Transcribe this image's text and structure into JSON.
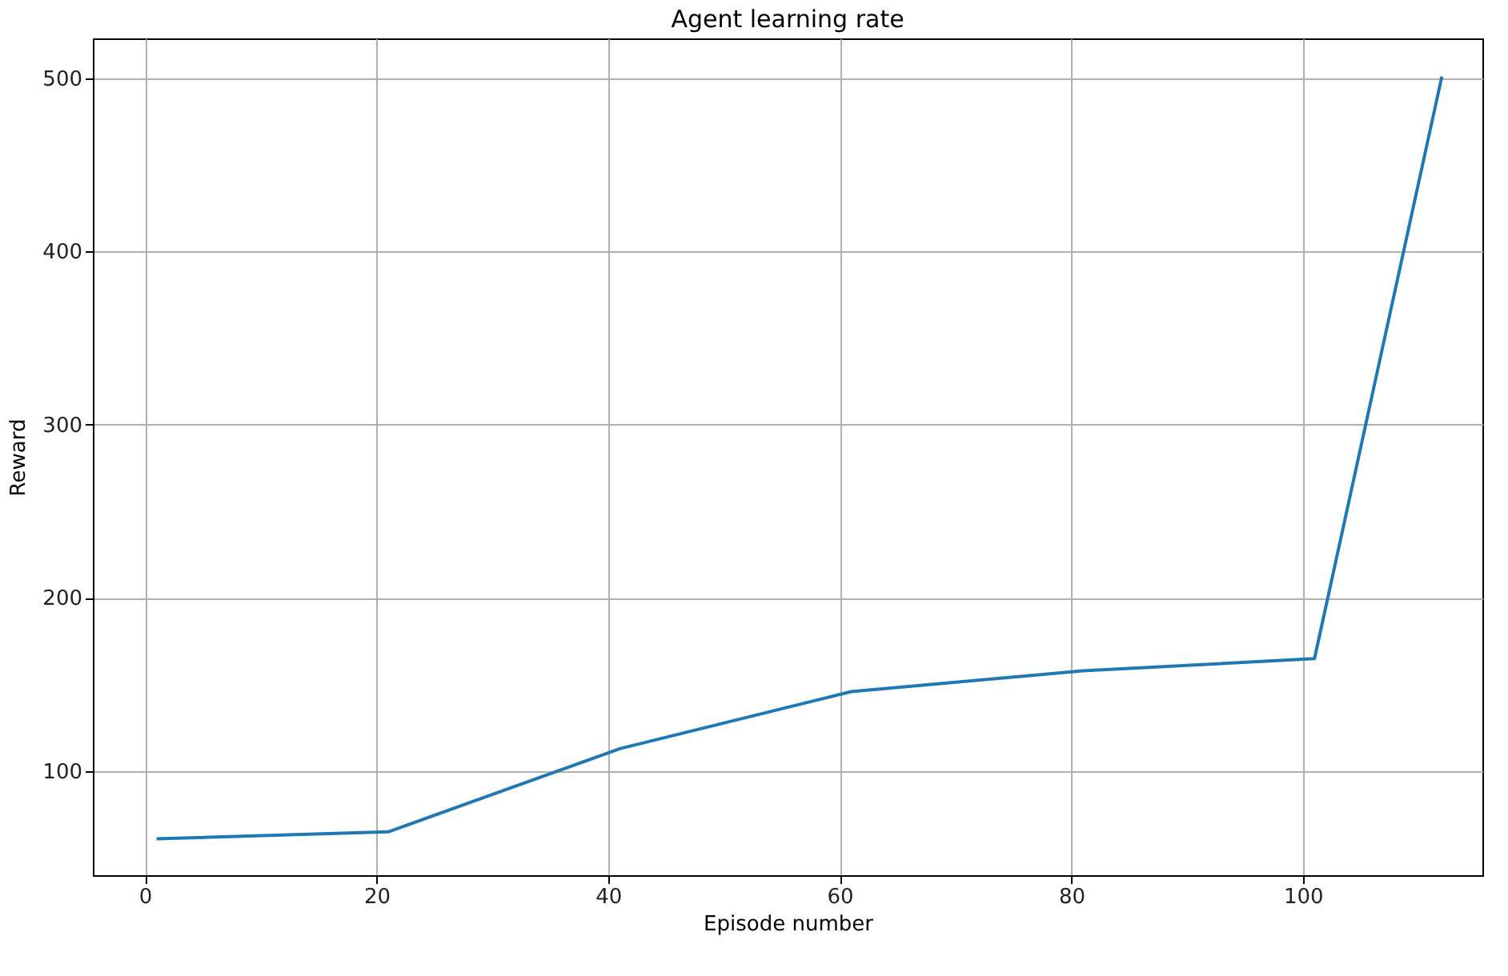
{
  "chart_data": {
    "type": "line",
    "title": "Agent learning rate",
    "xlabel": "Episode number",
    "ylabel": "Reward",
    "x": [
      1,
      21,
      41,
      61,
      81,
      101,
      112
    ],
    "series": [
      {
        "color": "#1f77b4",
        "values": [
          61,
          65,
          113,
          146,
          158,
          165,
          501
        ]
      }
    ],
    "xlim": [
      -4.5,
      115.5
    ],
    "ylim": [
      40,
      523
    ],
    "xticks": [
      0,
      20,
      40,
      60,
      80,
      100
    ],
    "yticks": [
      100,
      200,
      300,
      400,
      500
    ],
    "grid": true
  }
}
